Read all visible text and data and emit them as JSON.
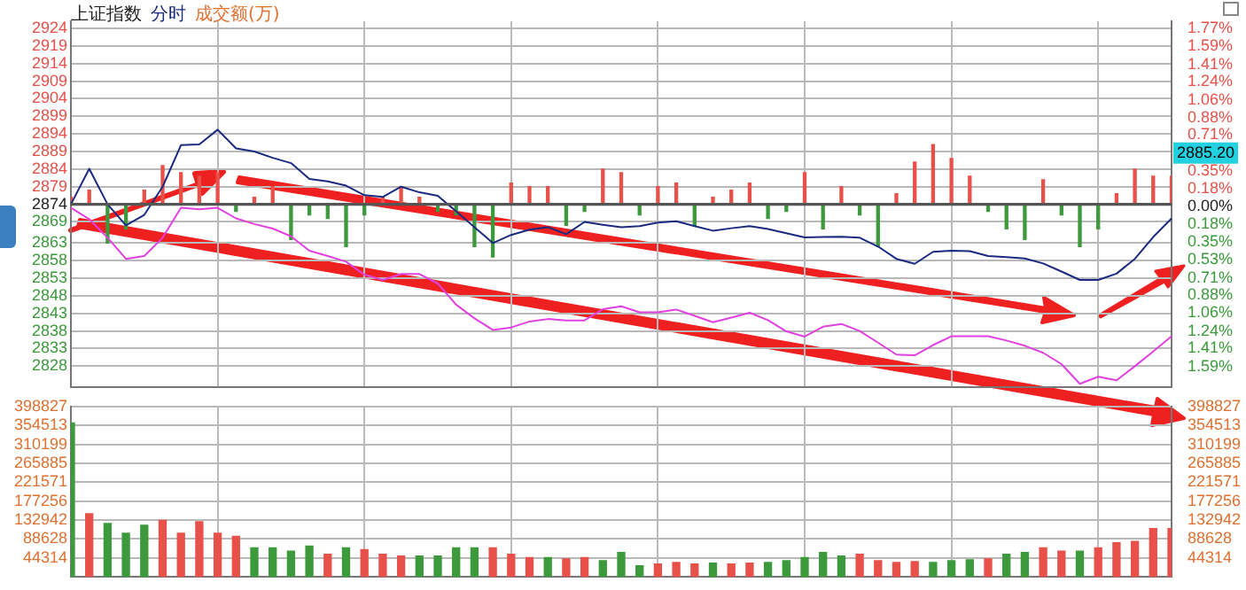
{
  "chart_data": [
    {
      "type": "line",
      "title": "上证指数",
      "subtitle": "成交额(万)",
      "marker": "none",
      "grid": true,
      "categories": [
        null,
        null,
        null,
        null,
        null,
        null,
        null,
        null,
        null,
        null,
        null,
        null,
        null,
        null,
        null,
        null,
        null,
        null,
        null,
        null,
        null,
        null,
        null,
        null,
        null,
        null,
        null,
        null,
        null,
        null,
        null,
        null,
        null,
        null,
        null,
        null,
        null,
        null,
        null,
        null,
        null,
        null,
        null,
        null,
        null,
        null,
        null,
        null,
        null,
        null,
        null,
        null,
        null,
        null,
        null,
        null,
        null,
        null,
        null,
        null,
        null
      ],
      "ylim": [
        2822,
        2926
      ],
      "yticks": [
        2924,
        2919,
        2914,
        2909,
        2904,
        2899,
        2894,
        2889,
        2884,
        2879,
        2874,
        2869,
        2863,
        2858,
        2853,
        2848,
        2843,
        2838,
        2833,
        2828
      ],
      "y2lim": [
        -1.797,
        1.84
      ],
      "y2ticks": [
        {
          "value": 1.77,
          "label": "1.77%"
        },
        {
          "value": 1.59,
          "label": "1.59%"
        },
        {
          "value": 1.41,
          "label": "1.41%"
        },
        {
          "value": 1.24,
          "label": "1.24%"
        },
        {
          "value": 1.06,
          "label": "1.06%"
        },
        {
          "value": 0.88,
          "label": "0.88%"
        },
        {
          "value": 0.71,
          "label": "0.71%"
        },
        {
          "value": 0.35,
          "label": "0.35%"
        },
        {
          "value": 0.18,
          "label": "0.18%"
        },
        {
          "value": 0,
          "label": "0.00%"
        },
        {
          "value": -0.18,
          "label": "0.18%"
        },
        {
          "value": -0.35,
          "label": "0.35%"
        },
        {
          "value": -0.53,
          "label": "0.53%"
        },
        {
          "value": -0.71,
          "label": "0.71%"
        },
        {
          "value": -0.88,
          "label": "0.88%"
        },
        {
          "value": -1.06,
          "label": "1.06%"
        },
        {
          "value": -1.24,
          "label": "1.24%"
        },
        {
          "value": -1.41,
          "label": "1.41%"
        },
        {
          "value": -1.59,
          "label": "1.59%"
        }
      ],
      "ref_lines": [
        {
          "axis": "y",
          "value": 2874,
          "color": "#555555"
        }
      ],
      "annotations": [
        "2885.20"
      ],
      "series": [
        {
          "name": "分时",
          "color": "#1a2a80",
          "values": [
            2874,
            2884.1,
            2874,
            2868,
            2871,
            2879,
            2890.8,
            2891,
            2895.2,
            2889.9,
            2889,
            2887.2,
            2885.7,
            2881.2,
            2880.5,
            2879.3,
            2876.6,
            2876.1,
            2879,
            2877.4,
            2876.4,
            2872,
            2867.5,
            2863,
            2865.3,
            2866.8,
            2867.5,
            2865.5,
            2869,
            2868.2,
            2867.5,
            2867.8,
            2868.8,
            2869.2,
            2867.8,
            2866.5,
            2867.2,
            2867.8,
            2867,
            2865.8,
            2864.6,
            2864.7,
            2864.8,
            2864.5,
            2862,
            2858.5,
            2857.1,
            2860.5,
            2860.8,
            2860.7,
            2859.3,
            2859,
            2858.6,
            2857.2,
            2854.9,
            2852.5,
            2852.5,
            2854.3,
            2858.5,
            2864.7,
            2870
          ]
        },
        {
          "color": "#e040e0",
          "values": [
            2873,
            2869.8,
            2864.5,
            2858.5,
            2859.3,
            2864.5,
            2873,
            2872.6,
            2873,
            2870,
            2868.4,
            2867.1,
            2864.9,
            2860.8,
            2859.3,
            2857.7,
            2854,
            2852.5,
            2854.2,
            2854.2,
            2851.5,
            2845.5,
            2841.6,
            2838.3,
            2839,
            2840.7,
            2841.4,
            2841,
            2841,
            2844.2,
            2845,
            2843.3,
            2843.3,
            2844.1,
            2842.3,
            2840.5,
            2841.8,
            2843.2,
            2841.1,
            2837.9,
            2836.4,
            2839.2,
            2840,
            2838,
            2834.7,
            2831.3,
            2831.1,
            2834,
            2836.5,
            2836.5,
            2836.5,
            2835.3,
            2833.8,
            2831.8,
            2828.6,
            2823,
            2825,
            2824,
            2828,
            2832.2,
            2836.5
          ]
        },
        {
          "type": "bar",
          "values": [
            2,
            4,
            -11,
            -7,
            4,
            11,
            9,
            8,
            9,
            -2,
            2,
            5,
            -10,
            -3,
            -4,
            -12,
            -3,
            2,
            5,
            2,
            -2,
            -3,
            -12,
            -15,
            6,
            5,
            5,
            -6,
            -2,
            10,
            9,
            -3,
            5,
            6,
            -6,
            2,
            4,
            6,
            -4,
            -2,
            9,
            -7,
            5,
            -3,
            -12,
            3,
            12,
            17,
            13,
            8,
            -2,
            -7,
            -10,
            7,
            -3,
            -12,
            -7,
            3,
            10,
            8,
            8
          ],
          "base": [
            2874,
            2874,
            2874,
            2874,
            2874,
            2874,
            2874,
            2874,
            2874,
            2874,
            2874,
            2874,
            2874,
            2874,
            2874,
            2874,
            2874,
            2874,
            2874,
            2874,
            2874,
            2874,
            2874,
            2874,
            2874,
            2874,
            2874,
            2874,
            2874,
            2874,
            2874,
            2874,
            2874,
            2874,
            2874,
            2874,
            2874,
            2874,
            2874,
            2874,
            2874,
            2874,
            2874,
            2874,
            2874,
            2874,
            2874,
            2874,
            2874,
            2874,
            2874,
            2874,
            2874,
            2874,
            2874,
            2874,
            2874,
            2874,
            2874,
            2874,
            2874
          ],
          "colors": [
            "#e8504a",
            "#e8504a",
            "#3c9a3c",
            "#3c9a3c",
            "#e8504a",
            "#e8504a",
            "#e8504a",
            "#e8504a",
            "#e8504a",
            "#3c9a3c",
            "#e8504a",
            "#e8504a",
            "#3c9a3c",
            "#3c9a3c",
            "#3c9a3c",
            "#3c9a3c",
            "#3c9a3c",
            "#e8504a",
            "#e8504a",
            "#e8504a",
            "#3c9a3c",
            "#3c9a3c",
            "#3c9a3c",
            "#3c9a3c",
            "#e8504a",
            "#e8504a",
            "#e8504a",
            "#3c9a3c",
            "#3c9a3c",
            "#e8504a",
            "#e8504a",
            "#3c9a3c",
            "#e8504a",
            "#e8504a",
            "#3c9a3c",
            "#e8504a",
            "#e8504a",
            "#e8504a",
            "#3c9a3c",
            "#3c9a3c",
            "#e8504a",
            "#3c9a3c",
            "#e8504a",
            "#3c9a3c",
            "#3c9a3c",
            "#e8504a",
            "#e8504a",
            "#e8504a",
            "#e8504a",
            "#e8504a",
            "#3c9a3c",
            "#3c9a3c",
            "#3c9a3c",
            "#e8504a",
            "#3c9a3c",
            "#3c9a3c",
            "#3c9a3c",
            "#e8504a",
            "#e8504a",
            "#e8504a",
            "#e8504a"
          ]
        }
      ]
    },
    {
      "type": "bar",
      "grid": true,
      "categories": [
        null,
        null,
        null,
        null,
        null,
        null,
        null,
        null,
        null,
        null,
        null,
        null,
        null,
        null,
        null,
        null,
        null,
        null,
        null,
        null,
        null,
        null,
        null,
        null,
        null,
        null,
        null,
        null,
        null,
        null,
        null,
        null,
        null,
        null,
        null,
        null,
        null,
        null,
        null,
        null,
        null,
        null,
        null,
        null,
        null,
        null,
        null,
        null,
        null,
        null,
        null,
        null,
        null,
        null,
        null,
        null,
        null,
        null,
        null,
        null,
        null
      ],
      "ylim": [
        0,
        398827
      ],
      "yticks": [
        44314,
        88628,
        132942,
        177256,
        221571,
        265885,
        310199,
        354513,
        398827
      ],
      "y2lim": [
        0,
        398827
      ],
      "y2ticks": [
        44314,
        88628,
        132942,
        177256,
        221571,
        265885,
        310199,
        354513,
        398827
      ],
      "values": [
        360000,
        148000,
        125000,
        102000,
        121000,
        132000,
        102000,
        129000,
        102000,
        95000,
        68000,
        68000,
        60000,
        72000,
        53000,
        68000,
        64000,
        53000,
        49000,
        49000,
        49000,
        68000,
        68000,
        68000,
        53000,
        45000,
        45000,
        42000,
        45000,
        38000,
        57000,
        26000,
        30000,
        34000,
        30000,
        32000,
        30000,
        32000,
        34000,
        38000,
        45000,
        57000,
        49000,
        53000,
        38000,
        34000,
        36000,
        34000,
        38000,
        40000,
        42000,
        53000,
        57000,
        68000,
        60000,
        60000,
        68000,
        80000,
        83000,
        113000,
        113000
      ],
      "colors": [
        "#3c9a3c",
        "#e8504a",
        "#3c9a3c",
        "#3c9a3c",
        "#3c9a3c",
        "#e8504a",
        "#e8504a",
        "#e8504a",
        "#e8504a",
        "#e8504a",
        "#3c9a3c",
        "#3c9a3c",
        "#3c9a3c",
        "#3c9a3c",
        "#e8504a",
        "#3c9a3c",
        "#e8504a",
        "#e8504a",
        "#e8504a",
        "#3c9a3c",
        "#3c9a3c",
        "#3c9a3c",
        "#3c9a3c",
        "#e8504a",
        "#e8504a",
        "#e8504a",
        "#3c9a3c",
        "#e8504a",
        "#e8504a",
        "#3c9a3c",
        "#3c9a3c",
        "#3c9a3c",
        "#e8504a",
        "#e8504a",
        "#e8504a",
        "#3c9a3c",
        "#e8504a",
        "#e8504a",
        "#3c9a3c",
        "#3c9a3c",
        "#3c9a3c",
        "#3c9a3c",
        "#3c9a3c",
        "#e8504a",
        "#e8504a",
        "#e8504a",
        "#e8504a",
        "#3c9a3c",
        "#3c9a3c",
        "#3c9a3c",
        "#e8504a",
        "#3c9a3c",
        "#3c9a3c",
        "#e8504a",
        "#e8504a",
        "#3c9a3c",
        "#e8504a",
        "#e8504a",
        "#e8504a",
        "#e8504a",
        "#e8504a"
      ]
    }
  ]
}
